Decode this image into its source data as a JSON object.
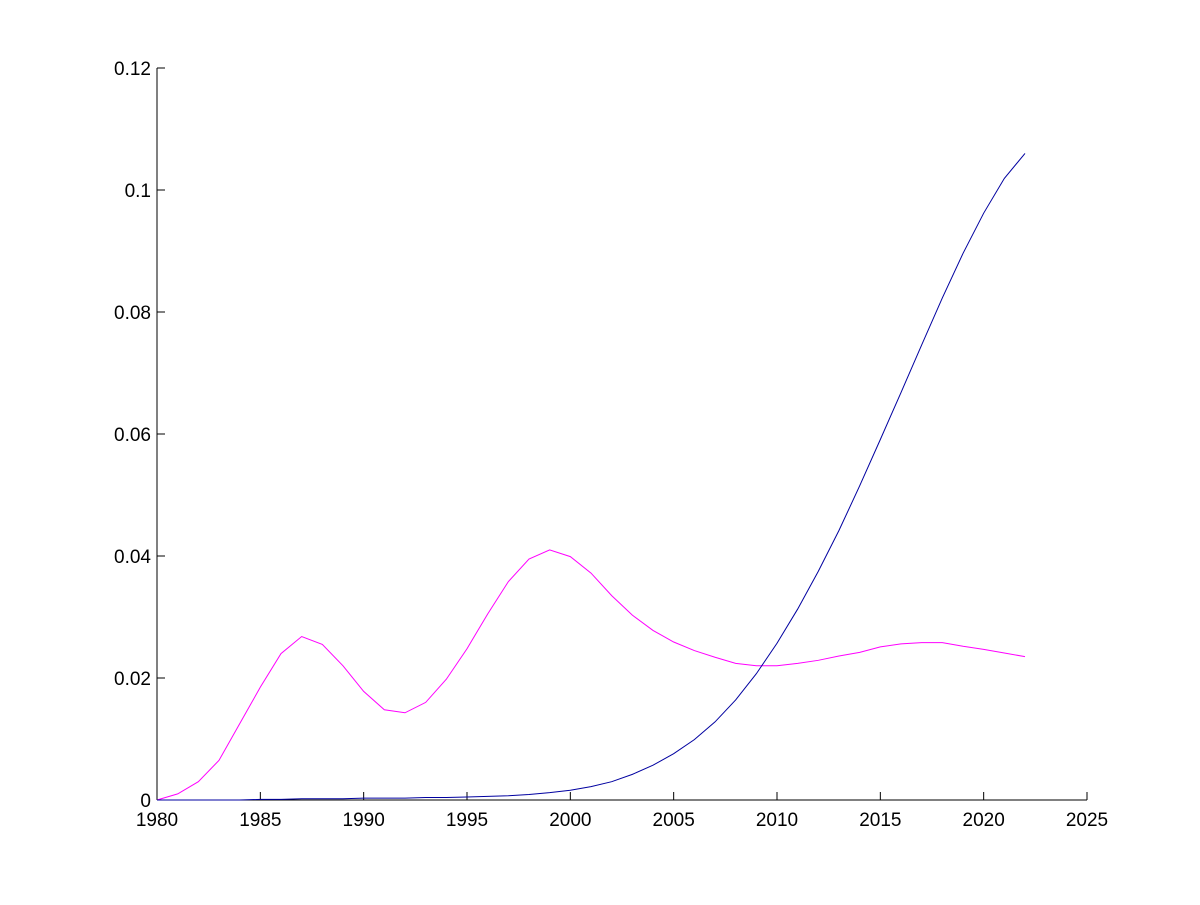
{
  "chart_data": {
    "type": "line",
    "title": "",
    "xlabel": "",
    "ylabel": "",
    "xlim": [
      1980,
      2025
    ],
    "ylim": [
      0,
      0.12
    ],
    "xticks": [
      1980,
      1985,
      1990,
      1995,
      2000,
      2005,
      2010,
      2015,
      2020,
      2025
    ],
    "xtick_labels": [
      "1980",
      "1985",
      "1990",
      "1995",
      "2000",
      "2005",
      "2010",
      "2015",
      "2020",
      "2025"
    ],
    "yticks": [
      0,
      0.02,
      0.04,
      0.06,
      0.08,
      0.1,
      0.12
    ],
    "ytick_labels": [
      "0",
      "0.02",
      "0.04",
      "0.06",
      "0.08",
      "0.1",
      "0.12"
    ],
    "grid": false,
    "legend": "none",
    "series": [
      {
        "color": "#ff00ff",
        "x": [
          1980,
          1981,
          1982,
          1983,
          1984,
          1985,
          1986,
          1987,
          1988,
          1989,
          1990,
          1991,
          1992,
          1993,
          1994,
          1995,
          1996,
          1997,
          1998,
          1999,
          2000,
          2001,
          2002,
          2003,
          2004,
          2005,
          2006,
          2007,
          2008,
          2009,
          2010,
          2011,
          2012,
          2013,
          2014,
          2015,
          2016,
          2017,
          2018,
          2019,
          2020,
          2021,
          2022
        ],
        "y": [
          0.0,
          0.001,
          0.003,
          0.0065,
          0.0125,
          0.0185,
          0.024,
          0.0268,
          0.0255,
          0.022,
          0.0178,
          0.0148,
          0.0143,
          0.016,
          0.0198,
          0.0248,
          0.0305,
          0.0358,
          0.0395,
          0.041,
          0.0399,
          0.0372,
          0.0335,
          0.0303,
          0.0278,
          0.0259,
          0.0245,
          0.0234,
          0.0224,
          0.022,
          0.022,
          0.0224,
          0.0229,
          0.0236,
          0.0242,
          0.0251,
          0.0256,
          0.0258,
          0.0258,
          0.0252,
          0.0247,
          0.0241,
          0.0235
        ]
      },
      {
        "color": "#0000a0",
        "x": [
          1980,
          1981,
          1982,
          1983,
          1984,
          1985,
          1986,
          1987,
          1988,
          1989,
          1990,
          1991,
          1992,
          1993,
          1994,
          1995,
          1996,
          1997,
          1998,
          1999,
          2000,
          2001,
          2002,
          2003,
          2004,
          2005,
          2006,
          2007,
          2008,
          2009,
          2010,
          2011,
          2012,
          2013,
          2014,
          2015,
          2016,
          2017,
          2018,
          2019,
          2020,
          2021,
          2022
        ],
        "y": [
          0.0,
          0.0,
          0.0,
          0.0,
          0.0,
          0.0001,
          0.0001,
          0.0002,
          0.0002,
          0.0002,
          0.0003,
          0.0003,
          0.0003,
          0.0004,
          0.0004,
          0.0005,
          0.0006,
          0.0007,
          0.0009,
          0.0012,
          0.0016,
          0.0022,
          0.003,
          0.0042,
          0.0057,
          0.0076,
          0.0099,
          0.0128,
          0.0164,
          0.0207,
          0.0257,
          0.0313,
          0.0375,
          0.0442,
          0.0515,
          0.0591,
          0.0668,
          0.0746,
          0.0823,
          0.0896,
          0.0962,
          0.1019,
          0.106
        ]
      }
    ]
  }
}
